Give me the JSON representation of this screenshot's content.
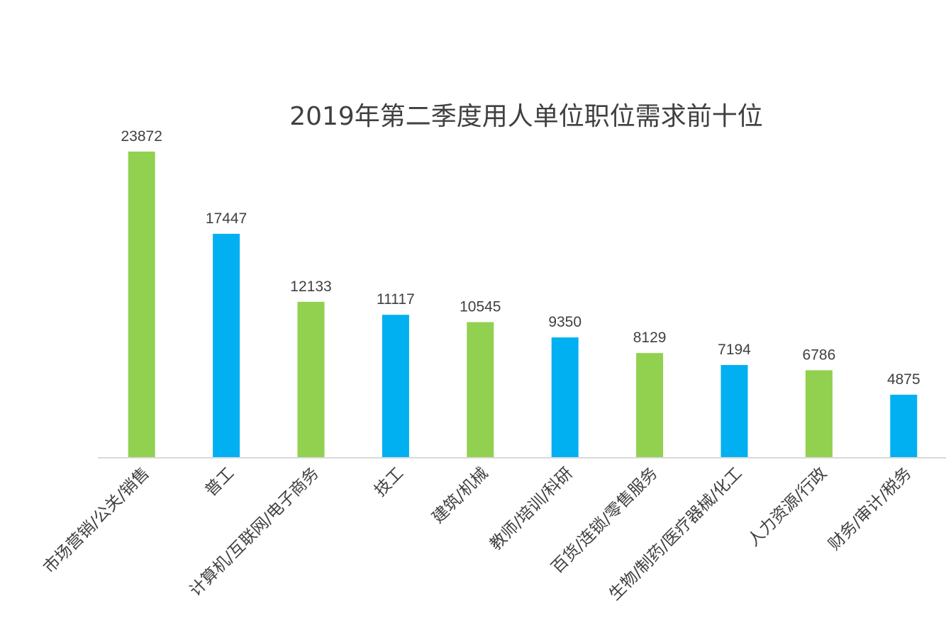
{
  "chart_data": {
    "type": "bar",
    "title": "2019年第二季度用人单位职位需求前十位",
    "categories": [
      "市场营销/公关/销售",
      "普工",
      "计算机/互联网/电子商务",
      "技工",
      "建筑/机械",
      "教师/培训/科研",
      "百货/连锁/零售服务",
      "生物/制药/医疗器械/化工",
      "人力资源/行政",
      "财务/审计/税务"
    ],
    "values": [
      23872,
      17447,
      12133,
      11117,
      10545,
      9350,
      8129,
      7194,
      6786,
      4875
    ],
    "bar_colors": [
      "#92d050",
      "#00b0f0",
      "#92d050",
      "#00b0f0",
      "#92d050",
      "#00b0f0",
      "#92d050",
      "#00b0f0",
      "#92d050",
      "#00b0f0"
    ],
    "xlabel": "",
    "ylabel": "",
    "ylim": [
      0,
      25000
    ],
    "grid": false,
    "legend": false,
    "axis_color": "#d9d9d9",
    "text_color": "#404040"
  }
}
